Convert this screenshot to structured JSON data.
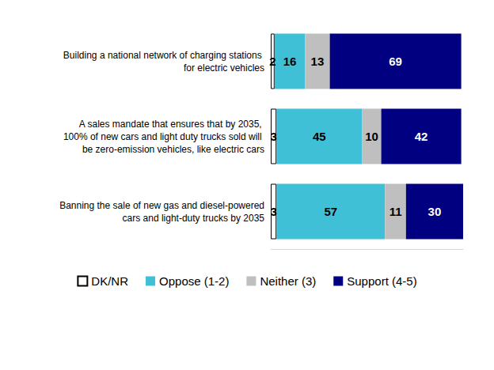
{
  "chart_data": {
    "type": "bar",
    "orientation": "horizontal",
    "stacked": true,
    "data_labels": true,
    "tick_labels": "y",
    "legend": "bottom",
    "categories": [
      "Building a national network of charging stations for electric vehicles",
      "A sales mandate that ensures that by 2035, 100% of new cars and light duty trucks sold will be zero-emission vehicles, like electric cars",
      "Banning the sale of new gas and diesel-powered cars and light-duty trucks by 2035"
    ],
    "xlim": [
      0,
      101
    ],
    "series": [
      {
        "name": "DK/NR",
        "color": "#ffffff",
        "values": [
          2,
          3,
          3
        ]
      },
      {
        "name": "Oppose (1-2)",
        "color": "#40c0d6",
        "values": [
          16,
          45,
          57
        ]
      },
      {
        "name": "Neither (3)",
        "color": "#bfbfbf",
        "values": [
          13,
          10,
          11
        ]
      },
      {
        "name": "Support (4-5)",
        "color": "#000080",
        "values": [
          69,
          42,
          30
        ]
      }
    ]
  }
}
